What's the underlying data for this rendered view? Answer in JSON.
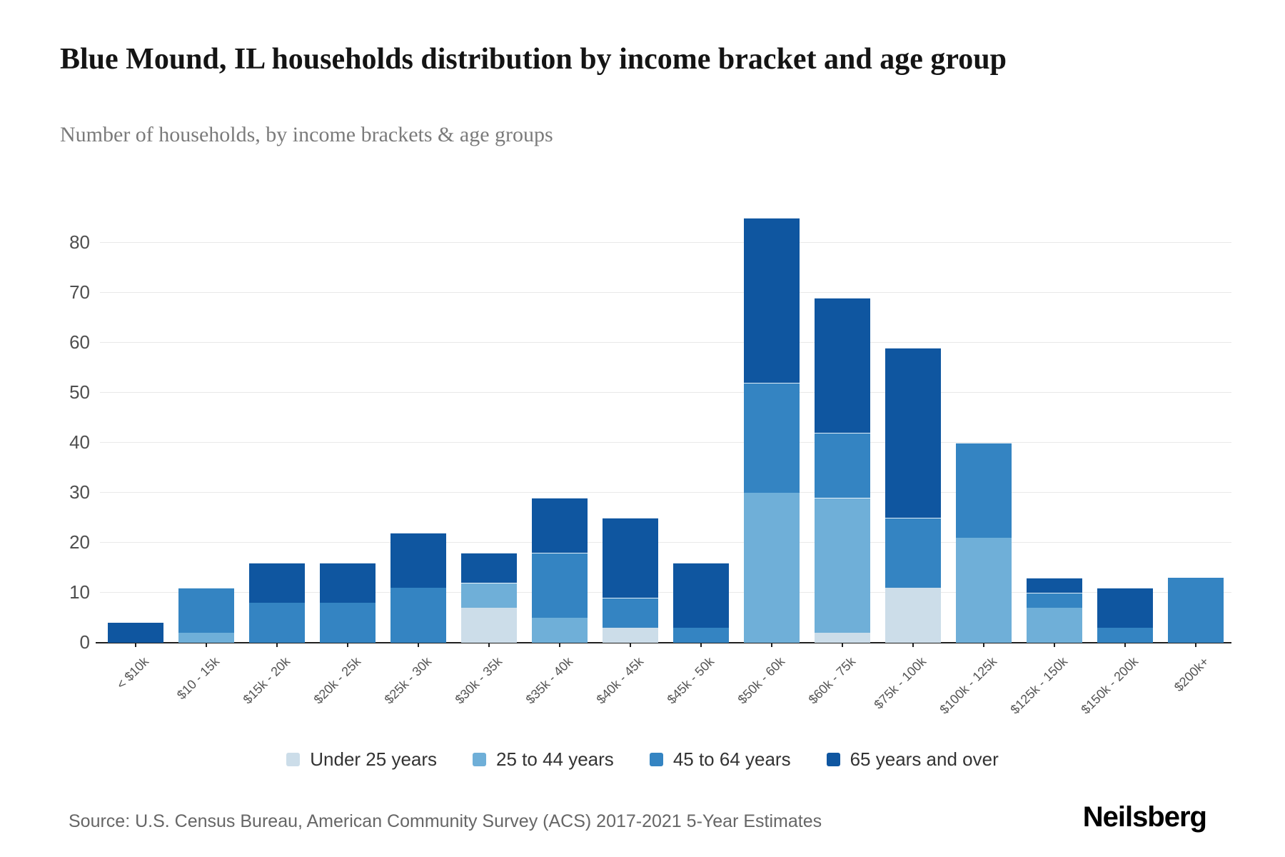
{
  "page": {
    "title": "Blue Mound, IL households distribution by income bracket and age group",
    "subtitle": "Number of households, by income brackets & age groups",
    "source": "Source: U.S. Census Bureau, American Community Survey (ACS) 2017-2021 5-Year Estimates",
    "brand": "Neilsberg"
  },
  "chart_data": {
    "type": "bar",
    "stacked": true,
    "title": "Blue Mound, IL households distribution by income bracket and age group",
    "xlabel": "",
    "ylabel": "Number of households",
    "grid": true,
    "legend_position": "bottom",
    "ylim": [
      0,
      91
    ],
    "yticks": [
      0,
      10,
      20,
      30,
      40,
      50,
      60,
      70,
      80
    ],
    "categories": [
      "< $10k",
      "$10 - 15k",
      "$15k - 20k",
      "$20k - 25k",
      "$25k - 30k",
      "$30k - 35k",
      "$35k - 40k",
      "$40k - 45k",
      "$45k - 50k",
      "$50k - 60k",
      "$60k - 75k",
      "$75k - 100k",
      "$100k - 125k",
      "$125k - 150k",
      "$150k - 200k",
      "$200k+"
    ],
    "series": [
      {
        "name": "Under 25 years",
        "color": "#ccdde9",
        "values": [
          0,
          0,
          0,
          0,
          0,
          7,
          0,
          3,
          0,
          0,
          2,
          11,
          0,
          0,
          0,
          0
        ]
      },
      {
        "name": "25 to 44 years",
        "color": "#6fafd8",
        "values": [
          0,
          2,
          0,
          0,
          0,
          5,
          5,
          0,
          0,
          30,
          27,
          0,
          21,
          7,
          0,
          0
        ]
      },
      {
        "name": "45 to 64 years",
        "color": "#3484c2",
        "values": [
          0,
          9,
          8,
          8,
          11,
          0,
          13,
          6,
          3,
          22,
          13,
          14,
          19,
          3,
          3,
          13
        ]
      },
      {
        "name": "65 years and over",
        "color": "#0f56a0",
        "values": [
          4,
          0,
          8,
          8,
          11,
          6,
          11,
          16,
          13,
          33,
          27,
          34,
          0,
          3,
          8,
          0
        ]
      }
    ],
    "totals": [
      4,
      11,
      16,
      16,
      22,
      18,
      29,
      25,
      16,
      85,
      69,
      59,
      40,
      13,
      11,
      13
    ]
  }
}
